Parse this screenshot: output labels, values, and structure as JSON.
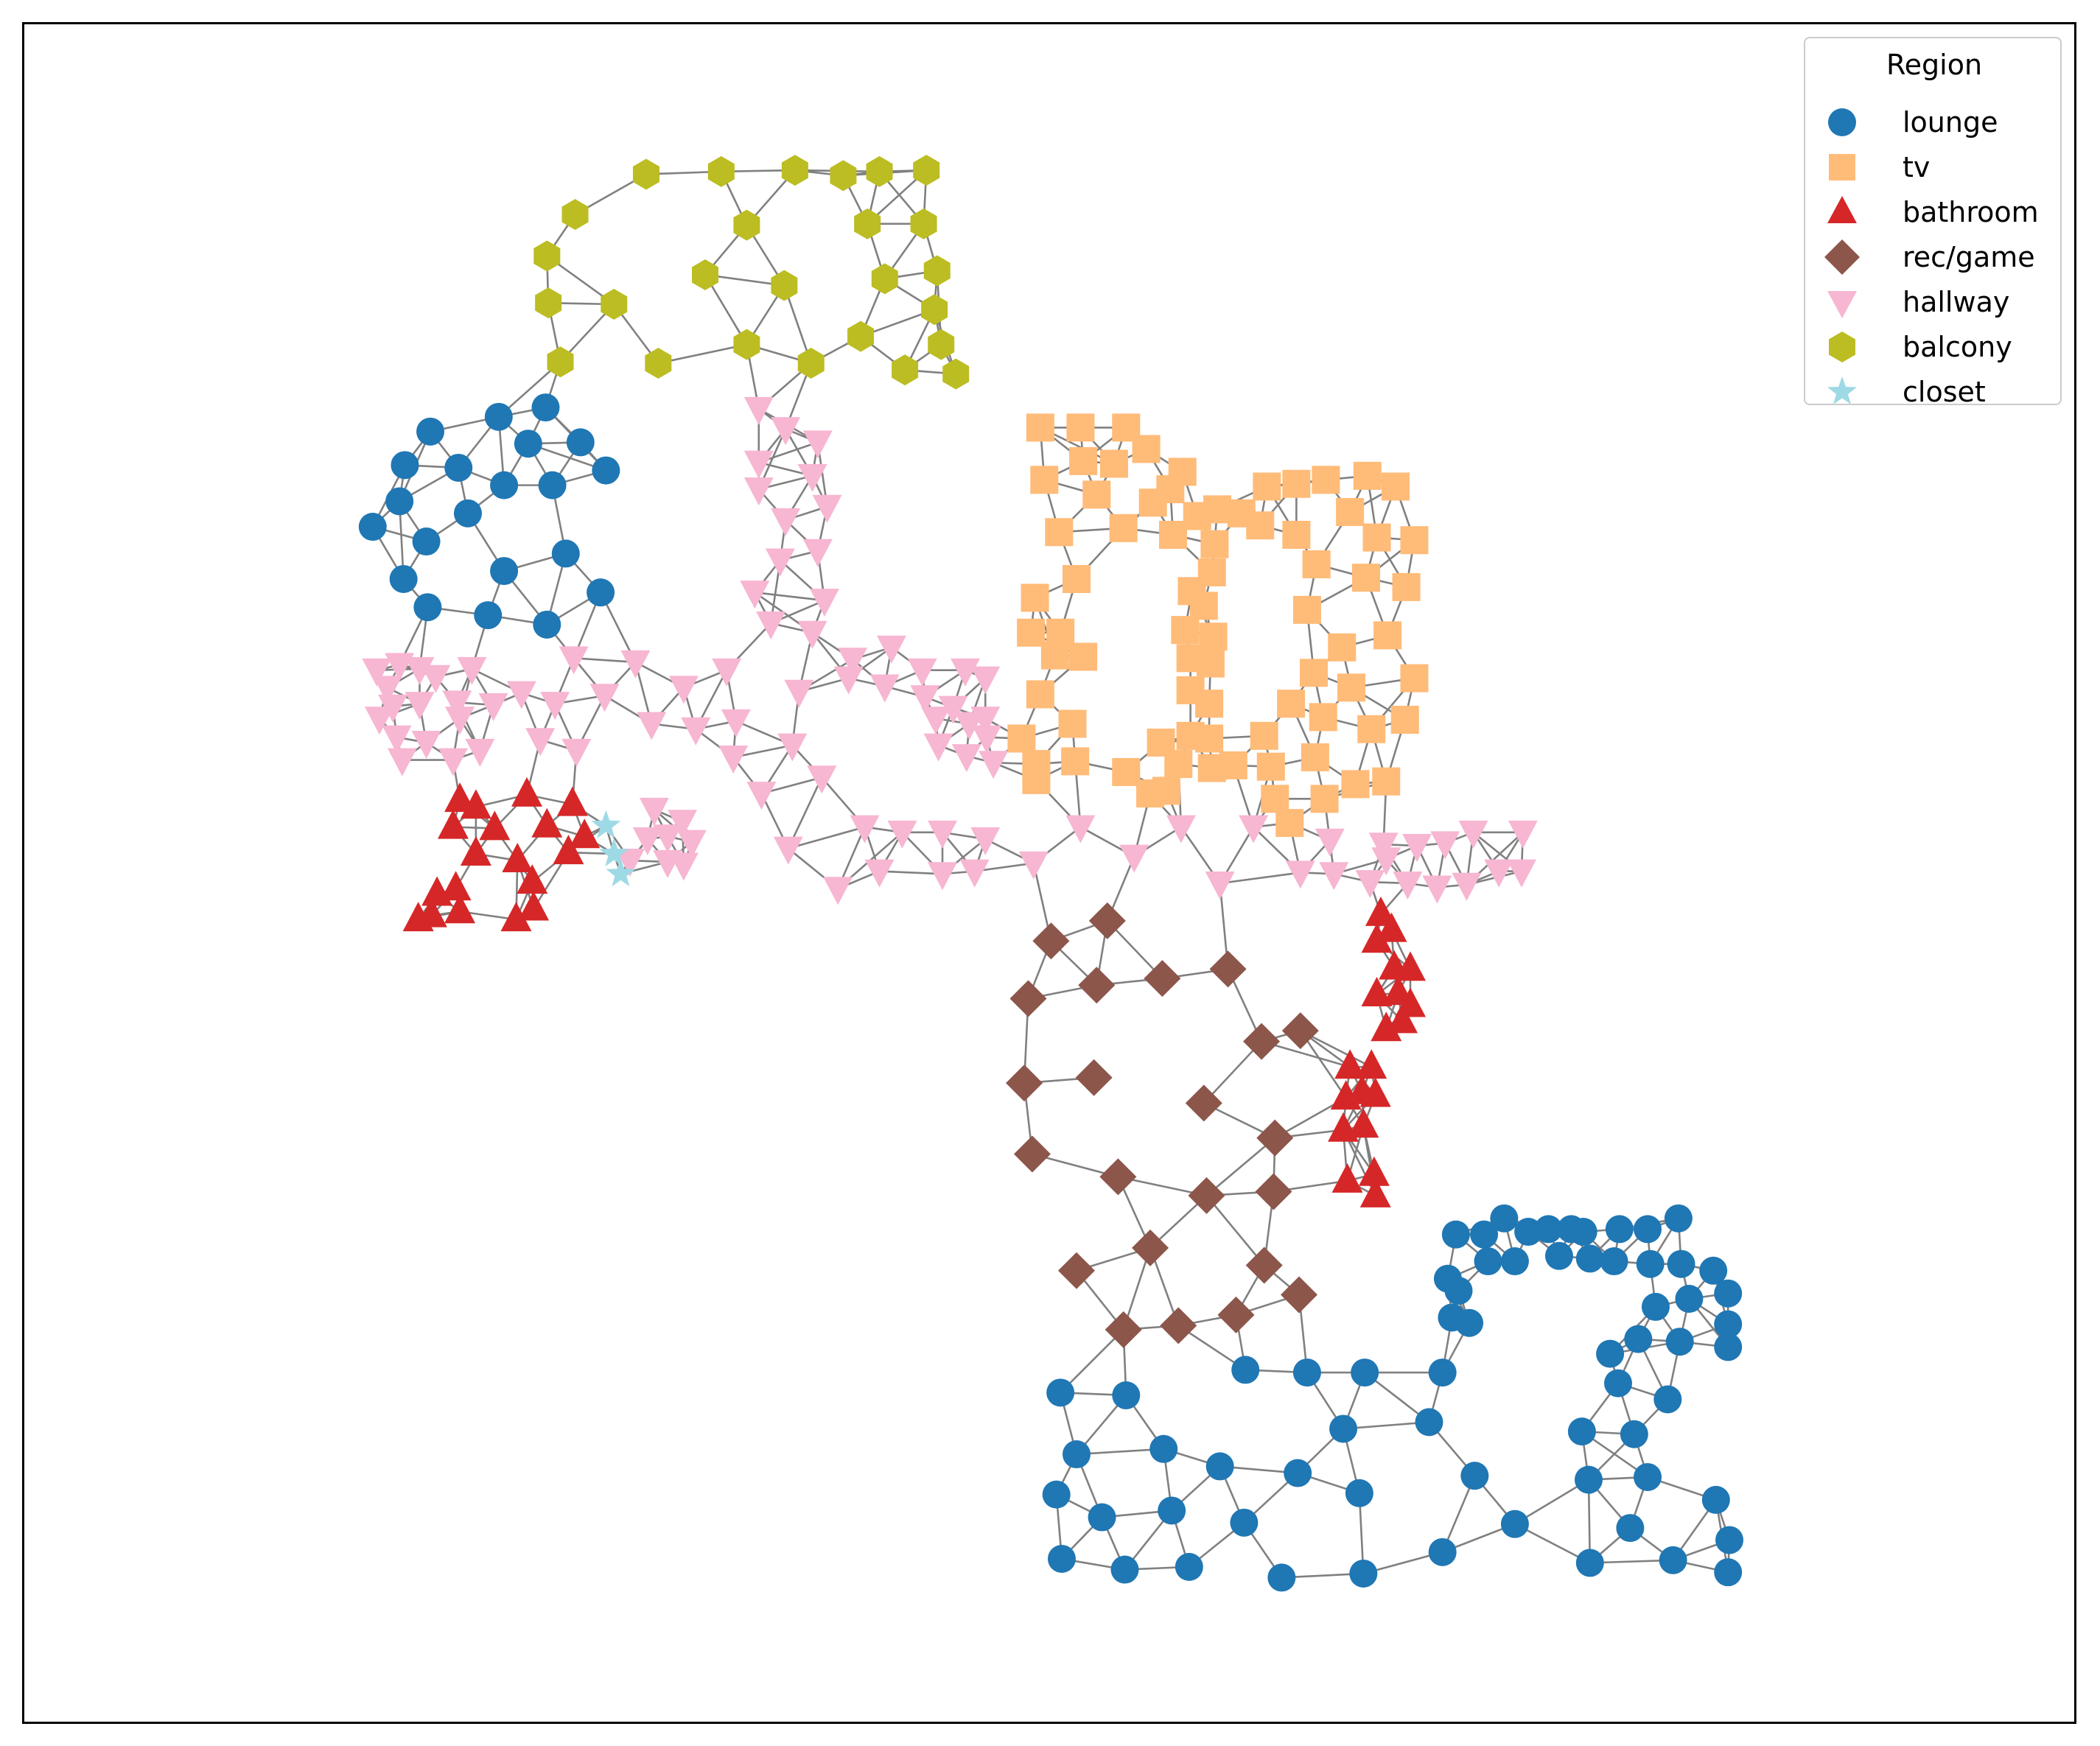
{
  "legend": {
    "title": "Region",
    "entries": [
      {
        "label": "lounge",
        "color": "#1f77b4",
        "marker": "circle"
      },
      {
        "label": "tv",
        "color": "#ffbb78",
        "marker": "square"
      },
      {
        "label": "bathroom",
        "color": "#d62728",
        "marker": "triangle-up"
      },
      {
        "label": "rec/game",
        "color": "#8c564b",
        "marker": "diamond"
      },
      {
        "label": "hallway",
        "color": "#f7b6d2",
        "marker": "triangle-down"
      },
      {
        "label": "balcony",
        "color": "#bcbd22",
        "marker": "hexagon"
      },
      {
        "label": "closet",
        "color": "#9edae5",
        "marker": "star"
      }
    ]
  },
  "edge_color": "#808080",
  "axes": {
    "ticks_visible": false,
    "grid": false,
    "legend_position": "top-right"
  }
}
